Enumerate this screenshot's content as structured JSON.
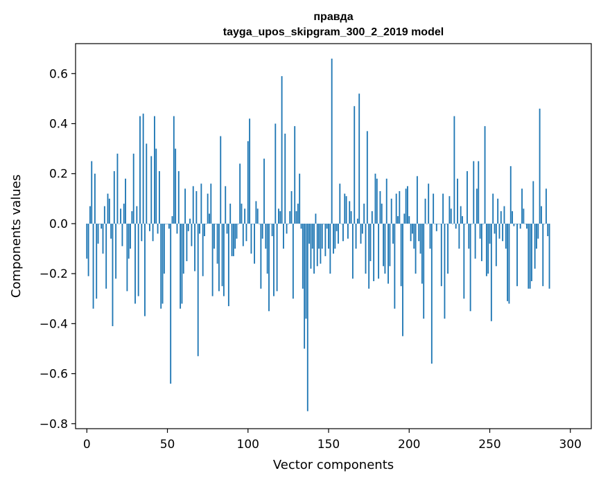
{
  "chart_data": {
    "type": "bar",
    "title": "правда",
    "subtitle": "tayga_upos_skipgram_300_2_2019 model",
    "xlabel": "Vector components",
    "ylabel": "Components values",
    "xlim": [
      -7,
      313
    ],
    "ylim": [
      -0.82,
      0.72
    ],
    "xticks": [
      0,
      50,
      100,
      150,
      200,
      250,
      300
    ],
    "xtick_labels": [
      "0",
      "50",
      "100",
      "150",
      "200",
      "250",
      "300"
    ],
    "yticks": [
      -0.8,
      -0.6,
      -0.4,
      -0.2,
      0.0,
      0.2,
      0.4,
      0.6
    ],
    "ytick_labels": [
      "−0.8",
      "−0.6",
      "−0.4",
      "−0.2",
      "0.0",
      "0.2",
      "0.4",
      "0.6"
    ],
    "bar_color": "#1f77b4",
    "grid": false,
    "legend": "none",
    "x_start": 0,
    "values": [
      -0.14,
      -0.21,
      0.07,
      0.25,
      -0.34,
      0.2,
      -0.3,
      -0.08,
      0.0,
      -0.02,
      -0.12,
      0.07,
      -0.26,
      0.12,
      0.1,
      -0.06,
      -0.41,
      0.21,
      -0.22,
      0.28,
      0.0,
      0.06,
      -0.09,
      0.08,
      0.18,
      -0.27,
      -0.14,
      -0.1,
      0.05,
      0.28,
      -0.32,
      0.07,
      -0.29,
      0.43,
      -0.07,
      0.44,
      -0.37,
      0.32,
      0.0,
      -0.03,
      0.27,
      -0.07,
      0.43,
      0.3,
      -0.04,
      0.21,
      -0.34,
      -0.32,
      -0.2,
      0.0,
      0.0,
      -0.02,
      -0.64,
      0.03,
      0.43,
      0.3,
      -0.04,
      0.21,
      -0.34,
      -0.32,
      -0.2,
      0.14,
      -0.15,
      -0.03,
      0.02,
      -0.09,
      0.15,
      -0.19,
      0.13,
      -0.53,
      -0.04,
      0.16,
      -0.21,
      -0.05,
      0.0,
      0.12,
      0.04,
      0.16,
      -0.29,
      -0.1,
      0.0,
      -0.16,
      -0.27,
      0.35,
      -0.25,
      -0.29,
      0.15,
      -0.04,
      -0.33,
      0.08,
      -0.13,
      -0.13,
      -0.1,
      -0.06,
      0.0,
      0.24,
      0.08,
      -0.09,
      0.06,
      -0.07,
      0.33,
      0.42,
      -0.12,
      0.0,
      -0.16,
      0.09,
      0.06,
      0.0,
      -0.26,
      -0.06,
      0.26,
      -0.1,
      -0.2,
      -0.35,
      0.0,
      -0.05,
      -0.29,
      0.4,
      -0.27,
      0.06,
      0.05,
      0.59,
      -0.1,
      0.36,
      -0.04,
      0.0,
      0.05,
      0.13,
      -0.3,
      0.39,
      0.05,
      0.08,
      0.2,
      -0.02,
      -0.26,
      -0.5,
      -0.38,
      -0.75,
      -0.08,
      -0.18,
      -0.1,
      -0.2,
      0.04,
      -0.17,
      -0.1,
      -0.16,
      -0.1,
      0.0,
      -0.13,
      -0.02,
      -0.1,
      -0.2,
      0.66,
      -0.12,
      -0.1,
      -0.03,
      -0.08,
      0.16,
      0.0,
      -0.07,
      0.12,
      0.11,
      -0.06,
      0.09,
      0.05,
      -0.22,
      0.47,
      -0.1,
      0.02,
      0.52,
      -0.08,
      -0.04,
      0.08,
      -0.2,
      0.37,
      -0.26,
      -0.15,
      0.05,
      -0.23,
      0.2,
      0.18,
      -0.22,
      0.13,
      0.08,
      -0.17,
      -0.2,
      0.18,
      -0.24,
      -0.17,
      0.1,
      -0.08,
      -0.34,
      0.12,
      0.03,
      0.13,
      -0.25,
      -0.45,
      0.04,
      0.14,
      0.15,
      0.03,
      -0.07,
      -0.04,
      -0.1,
      -0.2,
      0.19,
      -0.07,
      -0.12,
      -0.24,
      -0.38,
      0.1,
      0.0,
      0.16,
      -0.1,
      -0.56,
      0.12,
      0.0,
      -0.03,
      0.0,
      0.0,
      -0.25,
      0.12,
      -0.38,
      0.0,
      -0.2,
      0.11,
      0.06,
      0.0,
      0.43,
      -0.02,
      0.18,
      -0.1,
      0.07,
      0.03,
      -0.3,
      0.0,
      0.21,
      -0.1,
      -0.35,
      0.0,
      0.25,
      -0.14,
      0.14,
      0.25,
      -0.06,
      -0.15,
      0.0,
      0.39,
      -0.21,
      -0.2,
      -0.08,
      -0.39,
      0.12,
      -0.04,
      -0.17,
      0.1,
      -0.06,
      0.05,
      -0.07,
      0.07,
      -0.1,
      -0.31,
      -0.32,
      0.23,
      0.05,
      -0.01,
      0.0,
      -0.25,
      0.0,
      -0.02,
      0.14,
      0.06,
      0.0,
      -0.02,
      -0.26,
      -0.26,
      -0.23,
      0.17,
      -0.18,
      -0.1,
      -0.06,
      0.46,
      0.07,
      -0.25,
      0.0,
      0.14,
      -0.05,
      -0.26
    ]
  }
}
